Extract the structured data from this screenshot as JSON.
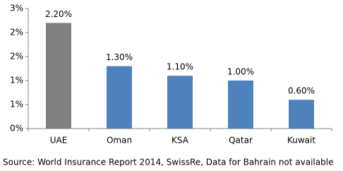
{
  "chart_data": {
    "type": "bar",
    "categories": [
      "UAE",
      "Oman",
      "KSA",
      "Qatar",
      "Kuwait"
    ],
    "values": [
      2.2,
      1.3,
      1.1,
      1.0,
      0.6
    ],
    "value_labels": [
      "2.20%",
      "1.30%",
      "1.10%",
      "1.00%",
      "0.60%"
    ],
    "colors": [
      "#808080",
      "#4f81bd",
      "#4f81bd",
      "#4f81bd",
      "#4f81bd"
    ],
    "ylim": [
      0,
      2.5
    ],
    "yticks": [
      {
        "value": 0,
        "label": "0%"
      },
      {
        "value": 0.5,
        "label": "1%"
      },
      {
        "value": 1,
        "label": "1%"
      },
      {
        "value": 1.5,
        "label": "2%"
      },
      {
        "value": 2,
        "label": "2%"
      },
      {
        "value": 2.5,
        "label": "3%"
      }
    ],
    "grid": false,
    "note": "Source: World Insurance Report 2014, SwissRe, Data for Bahrain not available"
  }
}
